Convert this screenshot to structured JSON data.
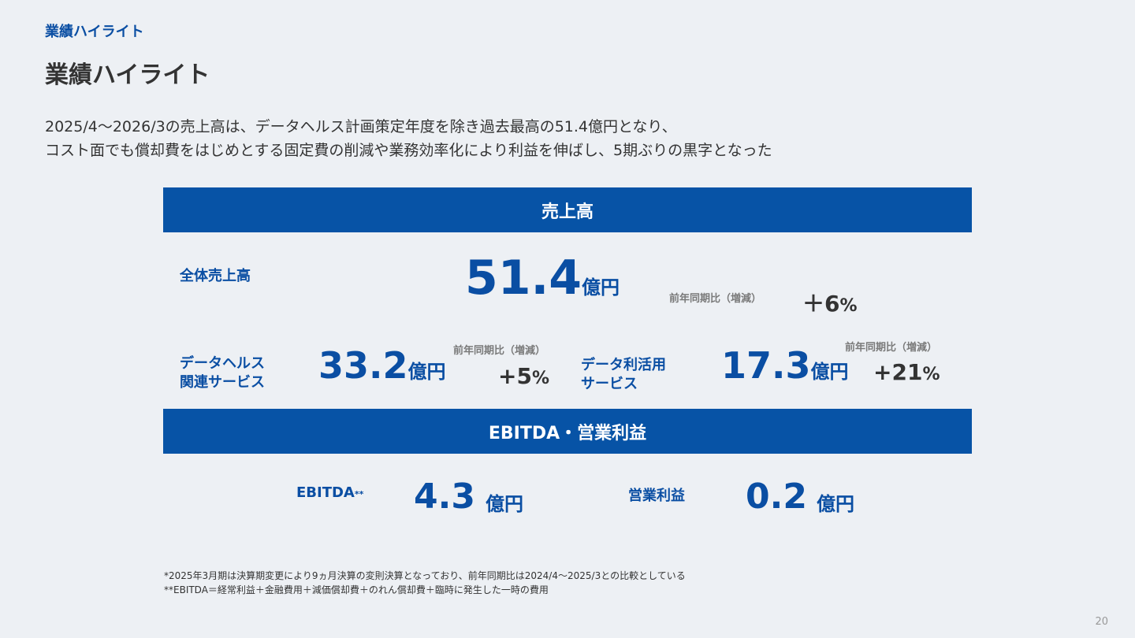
{
  "header": {
    "section_label": "業績ハイライト",
    "title": "業績ハイライト"
  },
  "summary": {
    "line1": "2025/4～2026/3の売上高は、データヘルス計画策定年度を除き過去最高の51.4億円となり、",
    "line2": "コスト面でも償却費をはじめとする固定費の削減や業務効率化により利益を伸ばし、5期ぶりの黒字となった"
  },
  "revenue_section": {
    "band_title": "売上高",
    "total": {
      "label": "全体売上高",
      "value": "51.4",
      "unit": "億円",
      "yoy_label": "前年同期比（増減）",
      "yoy_sign_value": "＋6",
      "yoy_pct": "%"
    },
    "datahealth": {
      "label_line1": "データヘルス",
      "label_line2": "関連サービス",
      "value": "33.2",
      "unit": "億円",
      "yoy_label": "前年同期比（増減）",
      "yoy_sign_value": "+5",
      "yoy_pct": "%"
    },
    "datautil": {
      "label_line1": "データ利活用",
      "label_line2": "サービス",
      "value": "17.3",
      "unit": "億円",
      "yoy_label": "前年同期比（増減）",
      "yoy_sign_value": "+21",
      "yoy_pct": "%"
    }
  },
  "profit_section": {
    "band_title": "EBITDA・営業利益",
    "ebitda": {
      "label": "EBITDA",
      "label_mark": "**",
      "value": "4.3",
      "unit": "億円"
    },
    "operating": {
      "label": "営業利益",
      "value": "0.2",
      "unit": "億円"
    }
  },
  "footnotes": {
    "note1": "*2025年3月期は決算期変更により9ヵ月決算の変則決算となっており、前年同期比は2024/4～2025/3との比較としている",
    "note2": "**EBITDA＝経常利益＋金融費用＋減価償却費＋のれん償却費＋臨時に発生した一時の費用"
  },
  "page_number": "20",
  "colors": {
    "accent": "#0753a6",
    "text": "#333333",
    "background": "#edf0f4"
  }
}
